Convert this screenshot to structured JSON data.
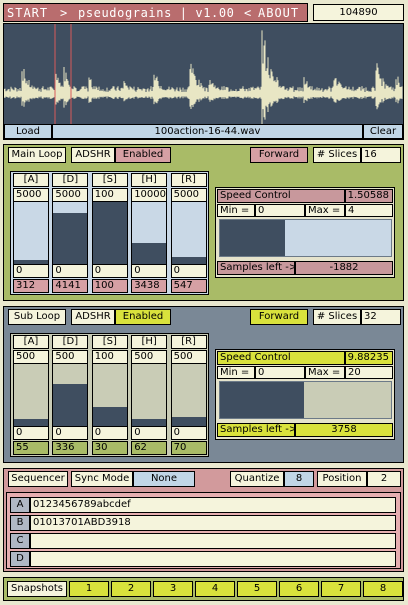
{
  "header": {
    "start": "START",
    "arrow_right": ">",
    "title": "pseudograins | v1.00",
    "arrow_left": "<",
    "about": "ABOUT",
    "counter": "104890"
  },
  "waveform": {
    "load_label": "Load",
    "file_name": "100action-16-44.wav",
    "clear_label": "Clear"
  },
  "main_loop": {
    "title": "Main Loop",
    "adshr_label": "ADSHR",
    "enabled_label": "Enabled",
    "direction": "Forward",
    "slices_label": "# Slices",
    "slices_value": "16",
    "envelope": [
      {
        "name": "[A]",
        "max": "5000",
        "min": "0",
        "value": "312",
        "fill": 0.06
      },
      {
        "name": "[D]",
        "max": "5000",
        "min": "0",
        "value": "4141",
        "fill": 0.83
      },
      {
        "name": "[S]",
        "max": "100",
        "min": "0",
        "value": "100",
        "fill": 1.0
      },
      {
        "name": "[H]",
        "max": "10000",
        "min": "0",
        "value": "3438",
        "fill": 0.34
      },
      {
        "name": "[R]",
        "max": "5000",
        "min": "0",
        "value": "547",
        "fill": 0.11
      }
    ],
    "speed": {
      "label": "Speed Control",
      "value": "1.50588",
      "min_label": "Min =",
      "min_value": "0",
      "max_label": "Max =",
      "max_value": "4",
      "fill": 0.38,
      "samples_label": "Samples left ->",
      "samples_value": "-1882"
    }
  },
  "sub_loop": {
    "title": "Sub Loop",
    "adshr_label": "ADSHR",
    "enabled_label": "Enabled",
    "direction": "Forward",
    "slices_label": "# Slices",
    "slices_value": "32",
    "envelope": [
      {
        "name": "[A]",
        "max": "500",
        "min": "0",
        "value": "55",
        "fill": 0.11
      },
      {
        "name": "[D]",
        "max": "500",
        "min": "0",
        "value": "336",
        "fill": 0.67
      },
      {
        "name": "[S]",
        "max": "100",
        "min": "0",
        "value": "30",
        "fill": 0.3
      },
      {
        "name": "[H]",
        "max": "500",
        "min": "0",
        "value": "62",
        "fill": 0.12
      },
      {
        "name": "[R]",
        "max": "500",
        "min": "0",
        "value": "70",
        "fill": 0.14
      }
    ],
    "speed": {
      "label": "Speed Control",
      "value": "9.88235",
      "min_label": "Min =",
      "min_value": "0",
      "max_label": "Max =",
      "max_value": "20",
      "fill": 0.49,
      "samples_label": "Samples left ->",
      "samples_value": "3758"
    }
  },
  "sequencer": {
    "title": "Sequencer",
    "sync_label": "Sync Mode",
    "sync_value": "None",
    "quantize_label": "Quantize",
    "quantize_value": "8",
    "position_label": "Position",
    "position_value": "2",
    "rows": [
      {
        "key": "A",
        "value": "0123456789abcdef"
      },
      {
        "key": "B",
        "value": "01013701ABD3918"
      },
      {
        "key": "C",
        "value": ""
      },
      {
        "key": "D",
        "value": ""
      }
    ]
  },
  "snapshots": {
    "label": "Snapshots",
    "slots": [
      "1",
      "2",
      "3",
      "4",
      "5",
      "6",
      "7",
      "8"
    ]
  },
  "colors": {
    "main_loop_bg": "#a9bb67",
    "sub_loop_bg": "#7a8896",
    "waveform_bg": "#3f4e60",
    "accent_pink": "#d6a0a4",
    "accent_yellow": "#d9e23c"
  }
}
